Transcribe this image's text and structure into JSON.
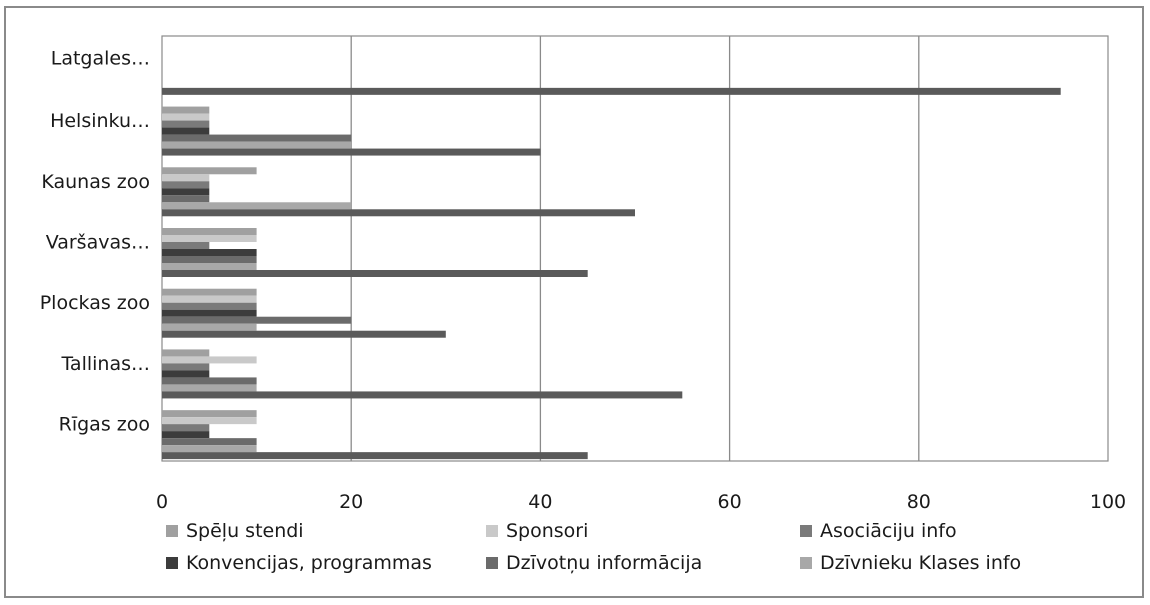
{
  "chart_data": {
    "type": "bar",
    "orientation": "horizontal",
    "categories": [
      "Latgales…",
      "Helsinku…",
      "Kaunas zoo",
      "Varšavas…",
      "Plockas zoo",
      "Tallinas…",
      "Rīgas zoo"
    ],
    "series": [
      {
        "name": "Spēļu stendi",
        "color": "#a0a0a0",
        "values": [
          0,
          5,
          10,
          10,
          10,
          5,
          10
        ]
      },
      {
        "name": "Sponsori",
        "color": "#c9c9c9",
        "values": [
          0,
          5,
          5,
          10,
          10,
          10,
          10
        ]
      },
      {
        "name": "Asociāciju info",
        "color": "#7a7a7a",
        "values": [
          0,
          5,
          5,
          5,
          10,
          5,
          5
        ]
      },
      {
        "name": "Konvencijas, programmas",
        "color": "#3c3c3c",
        "values": [
          0,
          5,
          5,
          10,
          10,
          5,
          5
        ]
      },
      {
        "name": "Dzīvotņu informācija",
        "color": "#6b6b6b",
        "values": [
          0,
          20,
          5,
          10,
          20,
          10,
          10
        ]
      },
      {
        "name": "Dzīvnieku Klases info",
        "color": "#a8a8a8",
        "values": [
          0,
          20,
          20,
          10,
          10,
          10,
          10
        ]
      },
      {
        "name": "",
        "color": "#5a5a5a",
        "values": [
          95,
          40,
          50,
          45,
          30,
          55,
          45
        ]
      }
    ],
    "xlim": [
      0,
      100
    ],
    "xticks": [
      "0",
      "20",
      "40",
      "60",
      "80",
      "100"
    ],
    "grid": true,
    "legend_position": "bottom"
  }
}
